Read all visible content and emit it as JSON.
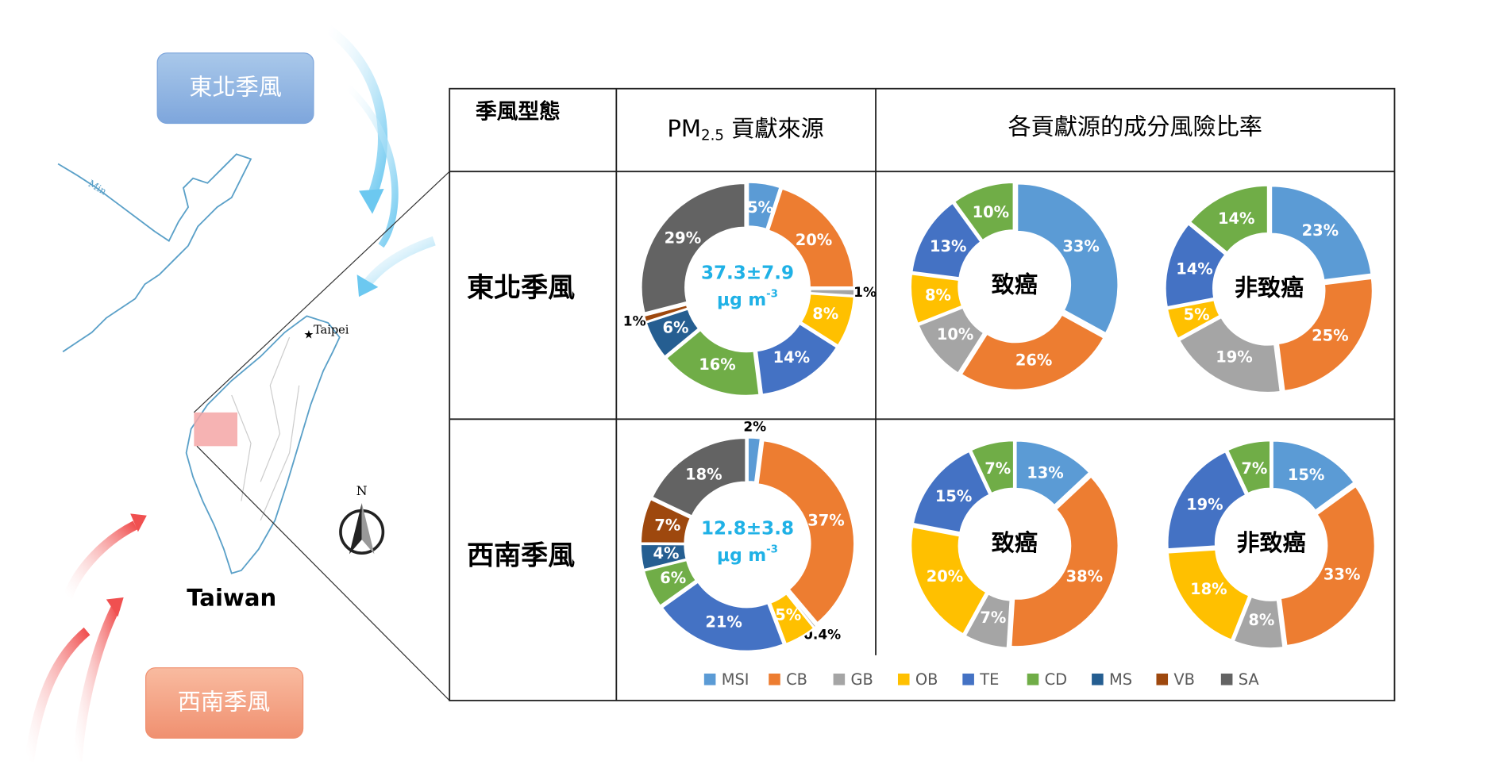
{
  "figure": {
    "ne_monsoon_label": "東北季風",
    "sw_monsoon_label": "西南季風",
    "map_label": "Taiwan",
    "city_label": "Taipei",
    "river_label": "Min",
    "north_label": "N",
    "table": {
      "header": {
        "col1": "季風型態",
        "col2_main": "PM",
        "col2_sub": "2.5",
        "col2_rest": " 貢獻來源",
        "col3": "各貢獻源的成分風險比率"
      },
      "rows": [
        "東北季風",
        "西南季風"
      ]
    }
  },
  "chart_data": [
    {
      "type": "donut",
      "categories": [
        "MSI",
        "CB",
        "GB",
        "OB",
        "TE",
        "CD",
        "MS",
        "VB",
        "SA"
      ],
      "colors": [
        "#5b9bd5",
        "#ed7d31",
        "#a5a5a5",
        "#ffc000",
        "#4472c4",
        "#70ad47",
        "#255e91",
        "#9e480e",
        "#636363"
      ],
      "values": [
        5,
        20,
        1,
        8,
        14,
        16,
        6,
        1,
        29
      ],
      "value_labels": [
        "5%",
        "20%",
        "1%",
        "8%",
        "14%",
        "16%",
        "6%",
        "1%",
        "29%"
      ],
      "center_text": "37.3±7.9",
      "center_unit": "μg m",
      "center_unit_sup": "-3"
    },
    {
      "type": "donut",
      "categories": [
        "MSI",
        "CB",
        "GB",
        "OB",
        "TE",
        "CD"
      ],
      "colors": [
        "#5b9bd5",
        "#ed7d31",
        "#a5a5a5",
        "#ffc000",
        "#4472c4",
        "#70ad47"
      ],
      "values": [
        33,
        26,
        10,
        8,
        13,
        10
      ],
      "value_labels": [
        "33%",
        "26%",
        "10%",
        "8%",
        "13%",
        "10%"
      ],
      "center_text": "致癌"
    },
    {
      "type": "donut",
      "categories": [
        "MSI",
        "CB",
        "GB",
        "OB",
        "TE",
        "CD"
      ],
      "colors": [
        "#5b9bd5",
        "#ed7d31",
        "#a5a5a5",
        "#ffc000",
        "#4472c4",
        "#70ad47"
      ],
      "values": [
        23,
        25,
        19,
        5,
        14,
        14
      ],
      "value_labels": [
        "23%",
        "25%",
        "19%",
        "5%",
        "14%",
        "14%"
      ],
      "center_text": "非致癌"
    },
    {
      "type": "donut",
      "categories": [
        "MSI",
        "CB",
        "GB",
        "OB",
        "TE",
        "CD",
        "MS",
        "VB",
        "SA"
      ],
      "colors": [
        "#5b9bd5",
        "#ed7d31",
        "#a5a5a5",
        "#ffc000",
        "#4472c4",
        "#70ad47",
        "#255e91",
        "#9e480e",
        "#636363"
      ],
      "values": [
        2,
        37,
        0.4,
        5,
        21,
        6,
        4,
        7,
        18
      ],
      "value_labels": [
        "2%",
        "37%",
        "0.4%",
        "5%",
        "21%",
        "6%",
        "4%",
        "7%",
        "18%"
      ],
      "center_text": "12.8±3.8",
      "center_unit": "μg m",
      "center_unit_sup": "-3"
    },
    {
      "type": "donut",
      "categories": [
        "MSI",
        "CB",
        "GB",
        "OB",
        "TE",
        "CD"
      ],
      "colors": [
        "#5b9bd5",
        "#ed7d31",
        "#a5a5a5",
        "#ffc000",
        "#4472c4",
        "#70ad47"
      ],
      "values": [
        13,
        38,
        7,
        20,
        15,
        7
      ],
      "value_labels": [
        "13%",
        "38%",
        "7%",
        "20%",
        "15%",
        "7%"
      ],
      "center_text": "致癌"
    },
    {
      "type": "donut",
      "categories": [
        "MSI",
        "CB",
        "GB",
        "OB",
        "TE",
        "CD"
      ],
      "colors": [
        "#5b9bd5",
        "#ed7d31",
        "#a5a5a5",
        "#ffc000",
        "#4472c4",
        "#70ad47"
      ],
      "values": [
        15,
        33,
        8,
        18,
        19,
        7
      ],
      "value_labels": [
        "15%",
        "33%",
        "8%",
        "18%",
        "19%",
        "7%"
      ],
      "center_text": "非致癌"
    }
  ]
}
